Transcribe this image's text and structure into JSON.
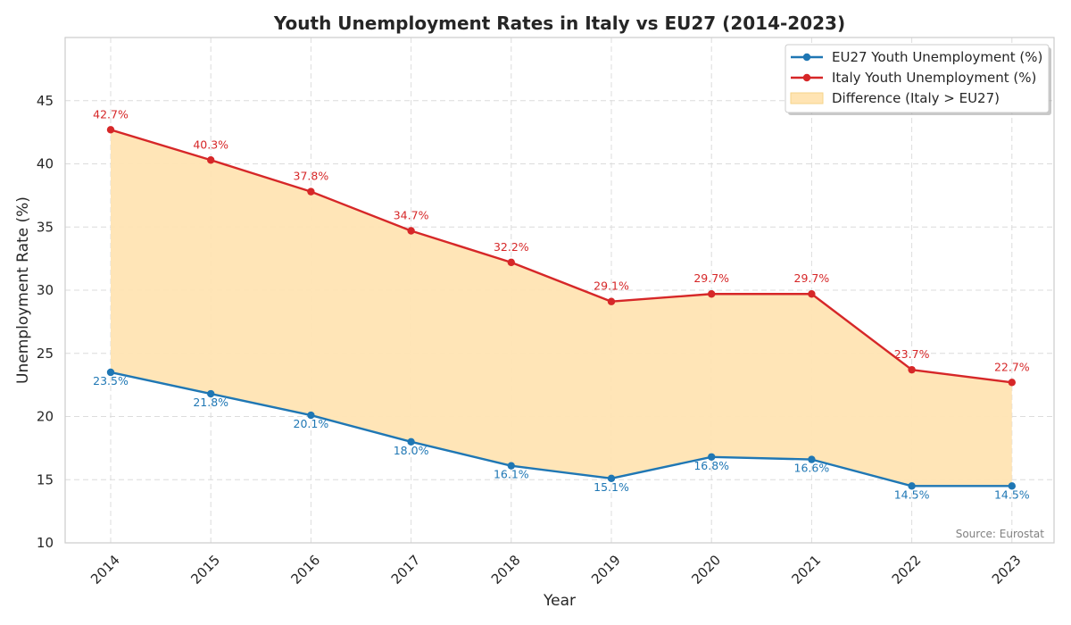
{
  "chart_data": {
    "type": "line",
    "title": "Youth Unemployment Rates in Italy vs EU27 (2014-2023)",
    "xlabel": "Year",
    "ylabel": "Unemployment Rate (%)",
    "categories": [
      "2014",
      "2015",
      "2016",
      "2017",
      "2018",
      "2019",
      "2020",
      "2021",
      "2022",
      "2023"
    ],
    "ylim": [
      10,
      50
    ],
    "yticks": [
      10,
      15,
      20,
      25,
      30,
      35,
      40,
      45
    ],
    "grid": true,
    "legend_position": "top-right",
    "series": [
      {
        "name": "EU27 Youth Unemployment (%)",
        "color": "#1f77b4",
        "values": [
          23.5,
          21.8,
          20.1,
          18.0,
          16.1,
          15.1,
          16.8,
          16.6,
          14.5,
          14.5
        ],
        "labels": [
          "23.5%",
          "21.8%",
          "20.1%",
          "18.0%",
          "16.1%",
          "15.1%",
          "16.8%",
          "16.6%",
          "14.5%",
          "14.5%"
        ]
      },
      {
        "name": "Italy Youth Unemployment (%)",
        "color": "#d62728",
        "values": [
          42.7,
          40.3,
          37.8,
          34.7,
          32.2,
          29.1,
          29.7,
          29.7,
          23.7,
          22.7
        ],
        "labels": [
          "42.7%",
          "40.3%",
          "37.8%",
          "34.7%",
          "32.2%",
          "29.1%",
          "29.7%",
          "29.7%",
          "23.7%",
          "22.7%"
        ]
      }
    ],
    "fill_between": {
      "name": "Difference (Italy > EU27)",
      "color": "#ffe4b3"
    },
    "source_note": "Source: Eurostat"
  }
}
